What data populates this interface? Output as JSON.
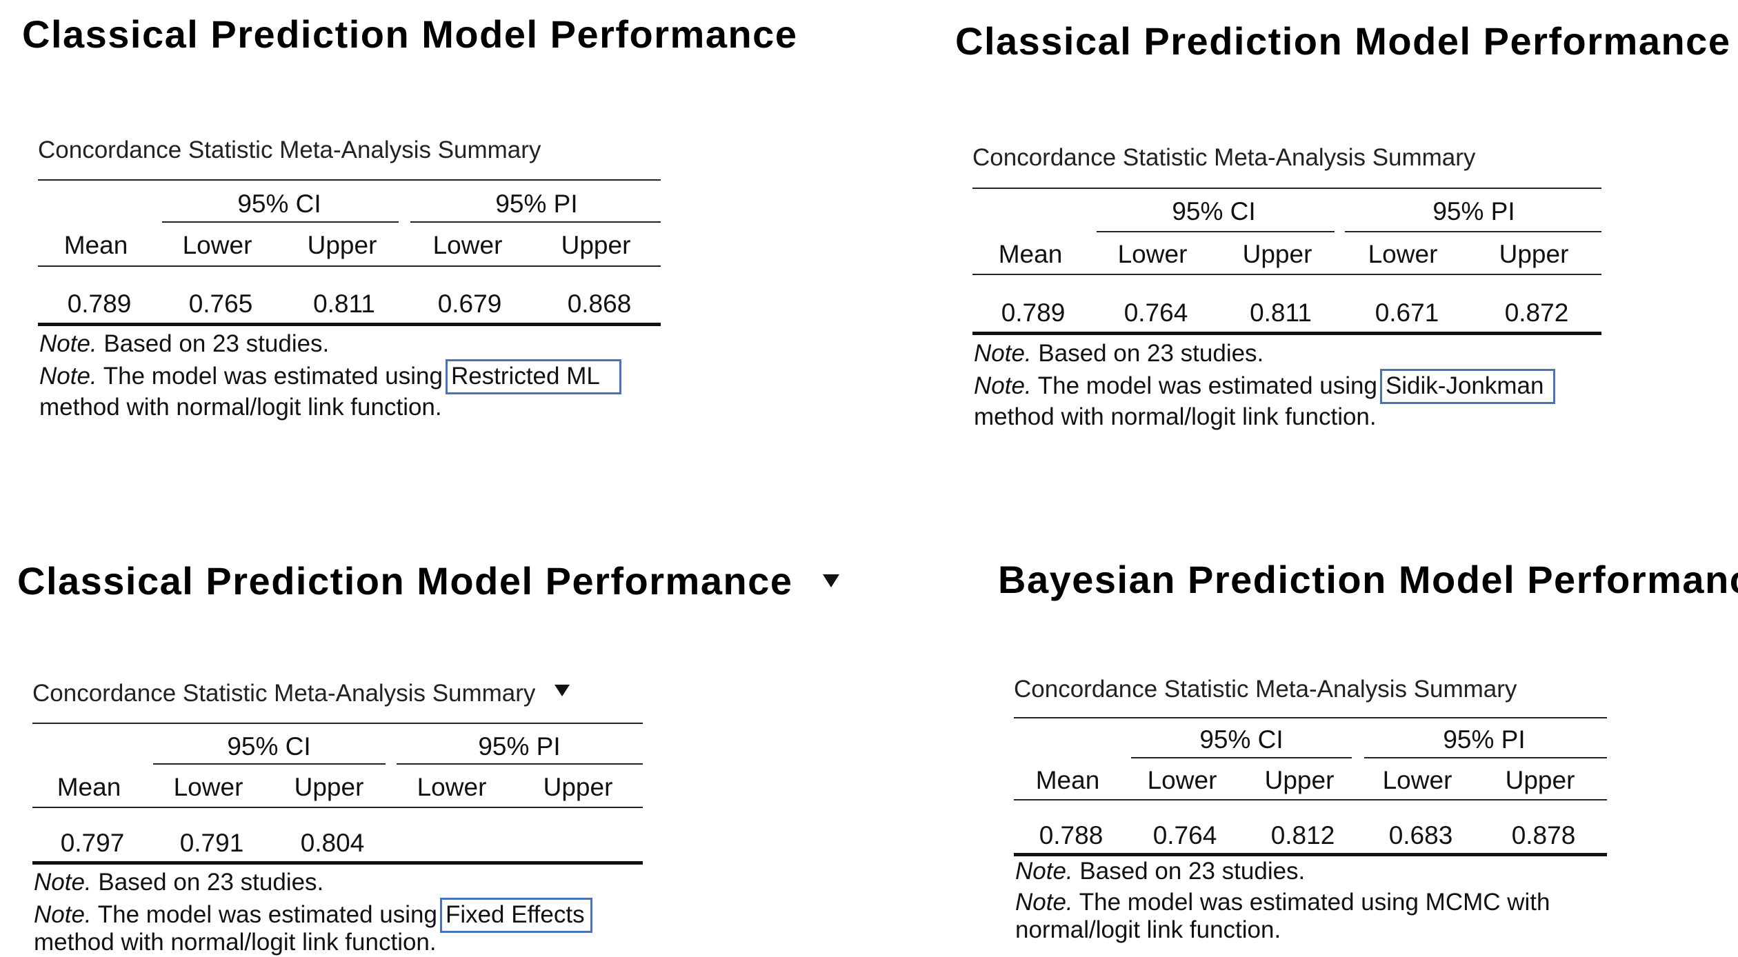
{
  "panels": [
    {
      "title": "Classical Prediction Model Performance",
      "table_title": "Concordance Statistic Meta-Analysis Summary",
      "group_ci": "95% CI",
      "group_pi": "95% PI",
      "columns": [
        "Mean",
        "Lower",
        "Upper",
        "Lower",
        "Upper"
      ],
      "row": [
        "0.789",
        "0.765",
        "0.811",
        "0.679",
        "0.868"
      ],
      "note_label": "Note.",
      "note1": "Based on 23 studies.",
      "note2_pre": "The model was estimated using",
      "method": "Restricted ML",
      "note2_post": "method with normal/logit link function."
    },
    {
      "title": "Classical Prediction Model Performance",
      "table_title": "Concordance Statistic Meta-Analysis Summary",
      "group_ci": "95% CI",
      "group_pi": "95% PI",
      "columns": [
        "Mean",
        "Lower",
        "Upper",
        "Lower",
        "Upper"
      ],
      "row": [
        "0.789",
        "0.764",
        "0.811",
        "0.671",
        "0.872"
      ],
      "note_label": "Note.",
      "note1": "Based on 23 studies.",
      "note2_pre": "The model was estimated using",
      "method": "Sidik-Jonkman",
      "note2_post": "method with normal/logit link function."
    },
    {
      "title": "Classical Prediction Model Performance",
      "table_title": "Concordance Statistic Meta-Analysis Summary",
      "group_ci": "95% CI",
      "group_pi": "95% PI",
      "columns": [
        "Mean",
        "Lower",
        "Upper",
        "Lower",
        "Upper"
      ],
      "row": [
        "0.797",
        "0.791",
        "0.804",
        "",
        ""
      ],
      "note_label": "Note.",
      "note1": "Based on 23 studies.",
      "note2_pre": "The model was estimated using",
      "method": "Fixed Effects",
      "note2_post": "method with normal/logit link function."
    },
    {
      "title": "Bayesian Prediction Model Performance",
      "table_title": "Concordance Statistic Meta-Analysis Summary",
      "group_ci": "95% CI",
      "group_pi": "95% PI",
      "columns": [
        "Mean",
        "Lower",
        "Upper",
        "Lower",
        "Upper"
      ],
      "row": [
        "0.788",
        "0.764",
        "0.812",
        "0.683",
        "0.878"
      ],
      "note_label": "Note.",
      "note1": "Based on 23 studies.",
      "note2_line1": "The model was estimated using MCMC with",
      "note2_line2": "normal/logit link function."
    }
  ]
}
